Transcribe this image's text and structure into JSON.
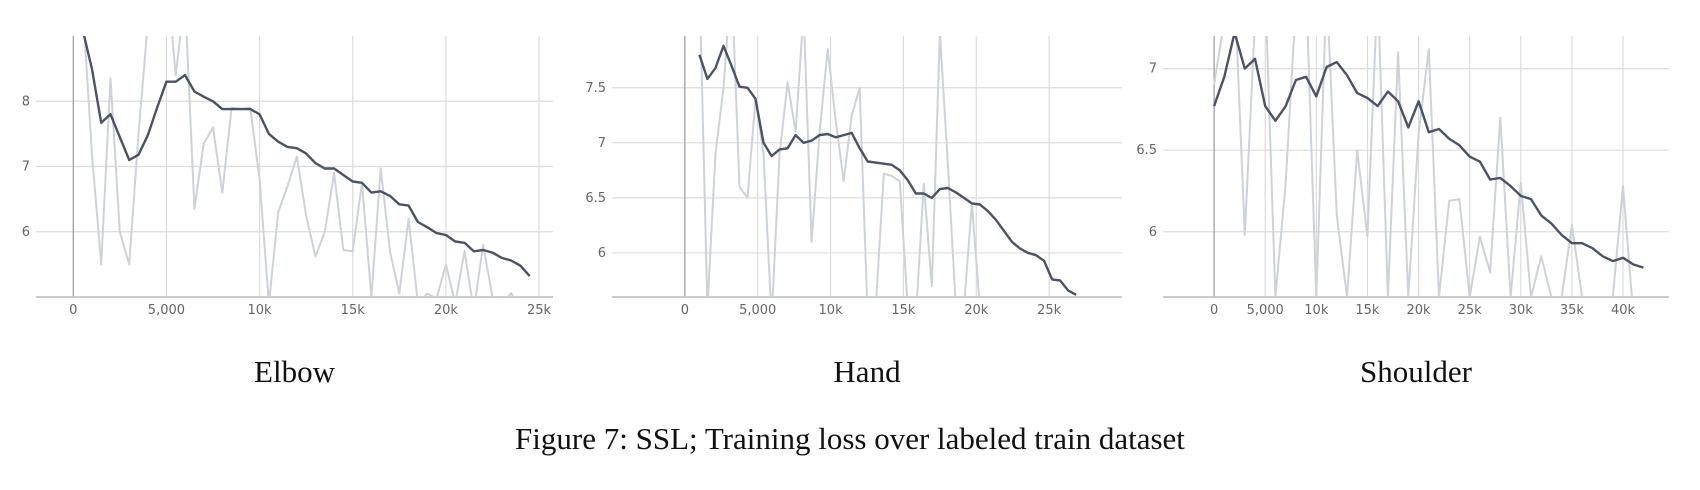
{
  "chart_data": [
    {
      "type": "line",
      "title": "Elbow",
      "grid": true,
      "xlim": [
        -2000,
        25750
      ],
      "ylim": [
        5,
        9
      ],
      "xticks": [
        0,
        {
          "value": 5000,
          "label": "5,000"
        },
        {
          "value": 10000,
          "label": "10k"
        },
        {
          "value": 15000,
          "label": "15k"
        },
        {
          "value": 20000,
          "label": "20k"
        },
        {
          "value": 25000,
          "label": "25k"
        }
      ],
      "yticks": [
        6,
        7,
        8
      ],
      "x": [
        500,
        1000,
        1500,
        2000,
        2500,
        3000,
        3500,
        4000,
        4500,
        5000,
        5500,
        6000,
        6500,
        7000,
        7500,
        8000,
        8500,
        9000,
        9500,
        10000,
        10500,
        11000,
        11500,
        12000,
        12500,
        13000,
        13500,
        14000,
        14500,
        15000,
        15500,
        16000,
        16500,
        17000,
        17500,
        18000,
        18500,
        19000,
        19500,
        20000,
        20500,
        21000,
        21500,
        22000,
        22500,
        23000,
        23500,
        24000,
        24500
      ],
      "series": [
        {
          "color": "#cdd2da",
          "values": [
            9.5,
            7.2,
            5.5,
            8.35,
            6.0,
            5.5,
            7.5,
            9.2,
            9.5,
            10,
            8.4,
            9.6,
            6.35,
            7.35,
            7.6,
            6.6,
            7.9,
            7.88,
            7.9,
            6.8,
            4.9,
            6.3,
            6.7,
            7.15,
            6.25,
            5.62,
            6.0,
            6.9,
            5.72,
            5.7,
            6.75,
            5.0,
            6.97,
            5.7,
            5.05,
            6.2,
            4.9,
            5.05,
            4.98,
            5.5,
            4.9,
            5.7,
            4.8,
            5.8,
            5.0,
            4.9,
            5.06,
            4.8,
            4.9
          ]
        },
        {
          "color": "#4a5366",
          "values": [
            9.1,
            8.5,
            7.67,
            7.8,
            7.45,
            7.1,
            7.18,
            7.48,
            7.9,
            8.3,
            8.3,
            8.4,
            8.15,
            8.07,
            8.0,
            7.88,
            7.88,
            7.88,
            7.88,
            7.8,
            7.5,
            7.38,
            7.3,
            7.28,
            7.2,
            7.05,
            6.97,
            6.97,
            6.87,
            6.77,
            6.75,
            6.6,
            6.62,
            6.55,
            6.42,
            6.4,
            6.15,
            6.07,
            5.98,
            5.95,
            5.85,
            5.83,
            5.7,
            5.72,
            5.68,
            5.6,
            5.56,
            5.48,
            5.32
          ]
        }
      ]
    },
    {
      "type": "line",
      "title": "Hand",
      "grid": true,
      "xlim": [
        -5000,
        30000
      ],
      "ylim": [
        5.6,
        7.97
      ],
      "xticks": [
        0,
        {
          "value": 5000,
          "label": "5,000"
        },
        {
          "value": 10000,
          "label": "10k"
        },
        {
          "value": 15000,
          "label": "15k"
        },
        {
          "value": 20000,
          "label": "20k"
        },
        {
          "value": 25000,
          "label": "25k"
        }
      ],
      "yticks": [
        6,
        6.5,
        7,
        7.5
      ],
      "x": [
        1000,
        1550,
        2100,
        2650,
        3200,
        3750,
        4300,
        4850,
        5400,
        5950,
        6500,
        7050,
        7600,
        8150,
        8700,
        9250,
        9800,
        10350,
        10900,
        11450,
        12000,
        12550,
        13100,
        13650,
        14200,
        14750,
        15300,
        15850,
        16400,
        16950,
        17500,
        18050,
        18600,
        19150,
        19700,
        20250,
        20800,
        21350,
        21900,
        22450,
        23000,
        23550,
        24100,
        24650,
        25200,
        25750,
        26300,
        26850
      ],
      "series": [
        {
          "color": "#cdd2da",
          "values": [
            8.5,
            5.5,
            6.9,
            7.5,
            8.5,
            6.6,
            6.5,
            7.4,
            6.9,
            5.4,
            6.9,
            7.55,
            7.1,
            8.2,
            6.1,
            7.1,
            7.85,
            7.2,
            6.65,
            7.25,
            7.5,
            5.4,
            5.5,
            6.72,
            6.7,
            6.65,
            5.5,
            5.4,
            6.63,
            5.7,
            8.0,
            6.8,
            5.5,
            5.5,
            6.45,
            5.5,
            5.5,
            5.5,
            5.5,
            5.5,
            5.5,
            5.5,
            5.5,
            5.5,
            5.5,
            5.5,
            5.5,
            5.5
          ]
        },
        {
          "color": "#4a5366",
          "values": [
            7.8,
            7.58,
            7.68,
            7.88,
            7.7,
            7.51,
            7.5,
            7.4,
            7.0,
            6.88,
            6.94,
            6.95,
            7.07,
            7.0,
            7.02,
            7.07,
            7.08,
            7.05,
            7.07,
            7.09,
            6.95,
            6.83,
            6.82,
            6.81,
            6.8,
            6.75,
            6.66,
            6.54,
            6.54,
            6.5,
            6.58,
            6.59,
            6.55,
            6.5,
            6.45,
            6.44,
            6.38,
            6.3,
            6.2,
            6.1,
            6.04,
            6.0,
            5.98,
            5.93,
            5.76,
            5.75,
            5.66,
            5.62
          ]
        }
      ]
    },
    {
      "type": "line",
      "title": "Shoulder",
      "grid": true,
      "xlim": [
        -5000,
        44500
      ],
      "ylim": [
        5.6,
        7.2
      ],
      "xticks": [
        0,
        {
          "value": 5000,
          "label": "5,000"
        },
        {
          "value": 10000,
          "label": "10k"
        },
        {
          "value": 15000,
          "label": "15k"
        },
        {
          "value": 20000,
          "label": "20k"
        },
        {
          "value": 25000,
          "label": "25k"
        },
        {
          "value": 30000,
          "label": "30k"
        },
        {
          "value": 35000,
          "label": "35k"
        },
        {
          "value": 40000,
          "label": "40k"
        }
      ],
      "yticks": [
        6,
        6.5,
        7
      ],
      "x": [
        0,
        1000,
        2000,
        3000,
        4000,
        5000,
        6000,
        7000,
        8000,
        9000,
        10000,
        11000,
        12000,
        13000,
        14000,
        15000,
        16000,
        17000,
        18000,
        19000,
        20000,
        21000,
        22000,
        23000,
        24000,
        25000,
        26000,
        27000,
        28000,
        29000,
        30000,
        31000,
        32000,
        33000,
        34000,
        35000,
        36000,
        37000,
        38000,
        39000,
        40000,
        41000,
        42000
      ],
      "series": [
        {
          "color": "#cdd2da",
          "values": [
            6.9,
            7.3,
            7.5,
            5.98,
            7.3,
            7.5,
            5.6,
            6.3,
            7.4,
            7.5,
            5.6,
            7.5,
            6.1,
            5.6,
            6.5,
            5.97,
            7.5,
            5.6,
            7.1,
            5.6,
            6.6,
            7.12,
            5.6,
            6.19,
            6.2,
            5.6,
            5.97,
            5.75,
            6.7,
            5.6,
            6.3,
            5.6,
            5.85,
            5.6,
            5.6,
            6.04,
            5.6,
            5.6,
            5.6,
            5.6,
            6.28,
            5.5,
            5.5
          ]
        },
        {
          "color": "#4a5366",
          "values": [
            6.77,
            6.95,
            7.22,
            7.0,
            7.06,
            6.77,
            6.68,
            6.77,
            6.93,
            6.95,
            6.83,
            7.01,
            7.04,
            6.96,
            6.85,
            6.82,
            6.77,
            6.86,
            6.8,
            6.64,
            6.8,
            6.61,
            6.63,
            6.57,
            6.53,
            6.46,
            6.43,
            6.32,
            6.33,
            6.28,
            6.22,
            6.2,
            6.1,
            6.05,
            5.98,
            5.93,
            5.93,
            5.9,
            5.85,
            5.82,
            5.84,
            5.8,
            5.78
          ]
        }
      ]
    }
  ],
  "caption": "Figure 7: SSL; Training loss over labeled train dataset"
}
